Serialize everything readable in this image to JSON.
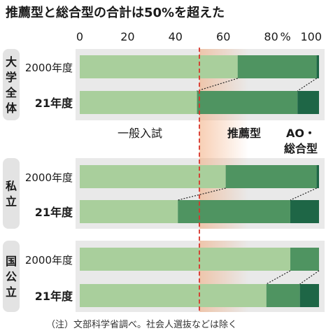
{
  "colors": {
    "ippan": "#a9cf9c",
    "suisen": "#4f9461",
    "ao": "#1e6646",
    "band": "#e9e9e9",
    "tab": "#e3e3e3",
    "reference": "#d9342b",
    "glow": "#f2a878"
  },
  "chart_data": {
    "type": "bar",
    "orientation": "horizontal",
    "stacked": true,
    "title": "推薦型と総合型の合計は50%を超えた",
    "xlim": [
      0,
      100
    ],
    "x_ticks": [
      "0",
      "20",
      "40",
      "60",
      "80",
      "100"
    ],
    "unit_label": "%",
    "reference_line": 50,
    "series_labels": {
      "ippan": "一般入試",
      "suisen": "推薦型",
      "ao": "AO・総合型"
    },
    "groups": [
      {
        "label": "大学全体",
        "rows": [
          {
            "year": "2000年度",
            "ippan": 66,
            "suisen": 33,
            "ao": 1
          },
          {
            "year": "21年度",
            "ippan": 49,
            "suisen": 42,
            "ao": 9
          }
        ]
      },
      {
        "label": "私立",
        "rows": [
          {
            "year": "2000年度",
            "ippan": 61,
            "suisen": 38,
            "ao": 1
          },
          {
            "year": "21年度",
            "ippan": 41,
            "suisen": 47,
            "ao": 12
          }
        ]
      },
      {
        "label": "国公立",
        "rows": [
          {
            "year": "2000年度",
            "ippan": 88,
            "suisen": 12,
            "ao": 0
          },
          {
            "year": "21年度",
            "ippan": 78,
            "suisen": 14,
            "ao": 8
          }
        ]
      }
    ],
    "note": "（注）文部科学省調べ。社会人選抜などは除く"
  }
}
